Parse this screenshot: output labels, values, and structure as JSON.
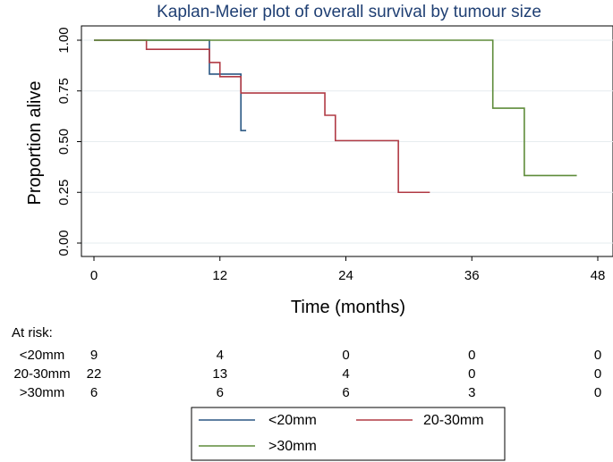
{
  "chart_data": {
    "type": "line",
    "title": "Kaplan-Meier plot of overall survival by tumour size",
    "xlabel": "Time (months)",
    "ylabel": "Proportion alive",
    "xlim": [
      0,
      48
    ],
    "ylim": [
      0,
      1
    ],
    "x_ticks": [
      "0",
      "12",
      "24",
      "36",
      "48"
    ],
    "y_ticks": [
      "0.00",
      "0.25",
      "0.50",
      "0.75",
      "1.00"
    ],
    "grid": "horizontal",
    "legend_position": "bottom",
    "series": [
      {
        "name": "<20mm",
        "color": "#2a5783",
        "steps": [
          [
            0,
            1.0
          ],
          [
            11,
            0.833
          ],
          [
            14,
            0.555
          ]
        ],
        "end_x": 14.5
      },
      {
        "name": "20-30mm",
        "color": "#b03a44",
        "steps": [
          [
            0,
            1.0
          ],
          [
            5,
            0.955
          ],
          [
            11,
            0.89
          ],
          [
            12,
            0.82
          ],
          [
            14,
            0.74
          ],
          [
            22,
            0.63
          ],
          [
            23,
            0.505
          ],
          [
            29,
            0.25
          ]
        ],
        "end_x": 32
      },
      {
        "name": ">30mm",
        "color": "#5e8c3a",
        "steps": [
          [
            0,
            1.0
          ],
          [
            38,
            0.665
          ],
          [
            41,
            0.333
          ]
        ],
        "end_x": 46
      }
    ],
    "at_risk": {
      "heading": "At risk:",
      "times": [
        0,
        12,
        24,
        36,
        48
      ],
      "rows": [
        {
          "label": "<20mm",
          "values": [
            "9",
            "4",
            "0",
            "0",
            "0"
          ]
        },
        {
          "label": "20-30mm",
          "values": [
            "22",
            "13",
            "4",
            "0",
            "0"
          ]
        },
        {
          "label": ">30mm",
          "values": [
            "6",
            "6",
            "6",
            "3",
            "0"
          ]
        }
      ]
    }
  }
}
